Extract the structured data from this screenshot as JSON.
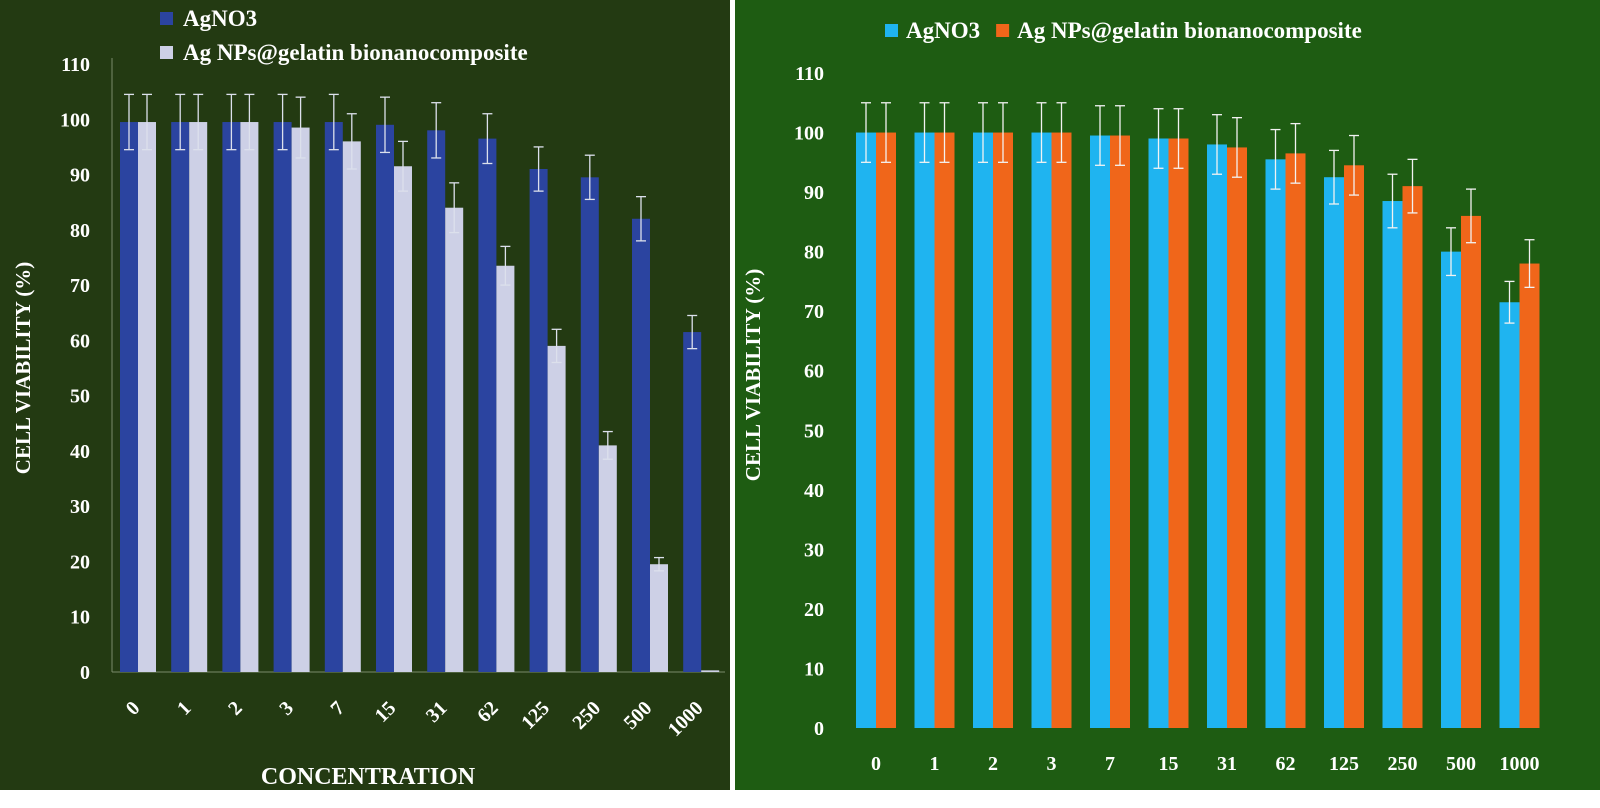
{
  "chart_data": [
    {
      "type": "bar",
      "background": "#233a12",
      "ylabel": "CELL VIABILITY (%)",
      "xlabel": "CONCENTRATION",
      "ylim": [
        0,
        110
      ],
      "yticks": [
        "0",
        "10",
        "20",
        "30",
        "40",
        "50",
        "60",
        "70",
        "80",
        "90",
        "100",
        "110"
      ],
      "categories": [
        "0",
        "1",
        "2",
        "3",
        "7",
        "15",
        "31",
        "62",
        "125",
        "250",
        "500",
        "1000"
      ],
      "legend_position": "top-left",
      "grid": false,
      "series": [
        {
          "name": "AgNO3",
          "color": "#2b44a0",
          "values": [
            99.5,
            99.5,
            99.5,
            99.5,
            99.5,
            99,
            98,
            96.5,
            91,
            89.5,
            82,
            61.5
          ],
          "errors": [
            5,
            5,
            5,
            5,
            5,
            5,
            5,
            4.5,
            4,
            4,
            4,
            3
          ]
        },
        {
          "name": "Ag NPs@gelatin bionanocomposite",
          "color": "#cdd0e6",
          "values": [
            99.5,
            99.5,
            99.5,
            98.5,
            96,
            91.5,
            84,
            73.5,
            59,
            41,
            19.5,
            0.3
          ],
          "errors": [
            5,
            5,
            5,
            5.5,
            5,
            4.5,
            4.5,
            3.5,
            3,
            2.5,
            1.2,
            0
          ]
        }
      ]
    },
    {
      "type": "bar",
      "background": "#1e5c12",
      "ylabel": "CELL VIABILITY (%)",
      "xlabel": "",
      "ylim": [
        0,
        110
      ],
      "yticks": [
        "0",
        "10",
        "20",
        "30",
        "40",
        "50",
        "60",
        "70",
        "80",
        "90",
        "100",
        "110"
      ],
      "categories": [
        "0",
        "1",
        "2",
        "3",
        "7",
        "15",
        "31",
        "62",
        "125",
        "250",
        "500",
        "1000"
      ],
      "legend_position": "top",
      "grid": false,
      "series": [
        {
          "name": "AgNO3",
          "color": "#1fb4f0",
          "values": [
            100,
            100,
            100,
            100,
            99.5,
            99,
            98,
            95.5,
            92.5,
            88.5,
            80,
            71.5
          ],
          "errors": [
            5,
            5,
            5,
            5,
            5,
            5,
            5,
            5,
            4.5,
            4.5,
            4,
            3.5
          ]
        },
        {
          "name": "Ag NPs@gelatin bionanocomposite",
          "color": "#f0661a",
          "values": [
            100,
            100,
            100,
            100,
            99.5,
            99,
            97.5,
            96.5,
            94.5,
            91,
            86,
            78
          ],
          "errors": [
            5,
            5,
            5,
            5,
            5,
            5,
            5,
            5,
            5,
            4.5,
            4.5,
            4
          ]
        }
      ]
    }
  ]
}
